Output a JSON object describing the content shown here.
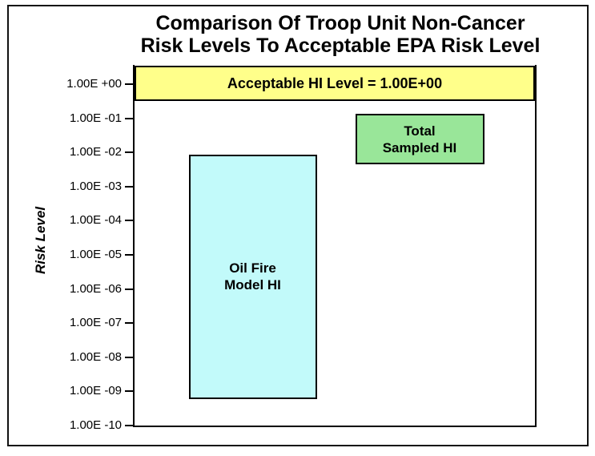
{
  "title": {
    "line1": "Comparison Of Troop Unit Non-Cancer",
    "line2": "Risk Levels To Acceptable EPA Risk Level"
  },
  "y_axis": {
    "label": "Risk Level",
    "scale": "log",
    "ticks": [
      {
        "text": "1.00E +00",
        "value": 1
      },
      {
        "text": "1.00E -01",
        "value": 0.1
      },
      {
        "text": "1.00E -02",
        "value": 0.01
      },
      {
        "text": "1.00E -03",
        "value": 0.001
      },
      {
        "text": "1.00E -04",
        "value": 0.0001
      },
      {
        "text": "1.00E -05",
        "value": 1e-05
      },
      {
        "text": "1.00E -06",
        "value": 1e-06
      },
      {
        "text": "1.00E -07",
        "value": 1e-07
      },
      {
        "text": "1.00E -08",
        "value": 1e-08
      },
      {
        "text": "1.00E -09",
        "value": 1e-09
      },
      {
        "text": "1.00E -10",
        "value": 1e-10
      }
    ]
  },
  "chart_data": {
    "type": "bar",
    "subtype": "floating_range_bars",
    "title": "Comparison Of Troop Unit Non-Cancer Risk Levels To Acceptable EPA Risk Level",
    "ylabel": "Risk Level",
    "yscale": "log",
    "ylim": [
      1e-10,
      3.5
    ],
    "grid": false,
    "legend": "labels inside bars",
    "bars": [
      {
        "name": "acceptable-hi-level",
        "label_lines": [
          "Acceptable HI Level = 1.00E+00"
        ],
        "value": 1.0,
        "range": [
          0.33,
          3.5
        ],
        "fill": "#FFFF8A",
        "stroke": "#000000",
        "x_center_frac": 0.5,
        "width_frac": 1.0
      },
      {
        "name": "total-sampled-hi",
        "label_lines": [
          "Total",
          "Sampled HI"
        ],
        "range": [
          0.0045,
          0.135
        ],
        "fill": "#99E699",
        "stroke": "#000000",
        "x_center_frac": 0.712,
        "width_frac": 0.322
      },
      {
        "name": "oil-fire-model-hi",
        "label_lines": [
          "Oil Fire",
          "Model HI"
        ],
        "range": [
          6e-10,
          0.0088
        ],
        "fill": "#C2FAFA",
        "stroke": "#000000",
        "x_center_frac": 0.295,
        "width_frac": 0.32
      }
    ]
  }
}
